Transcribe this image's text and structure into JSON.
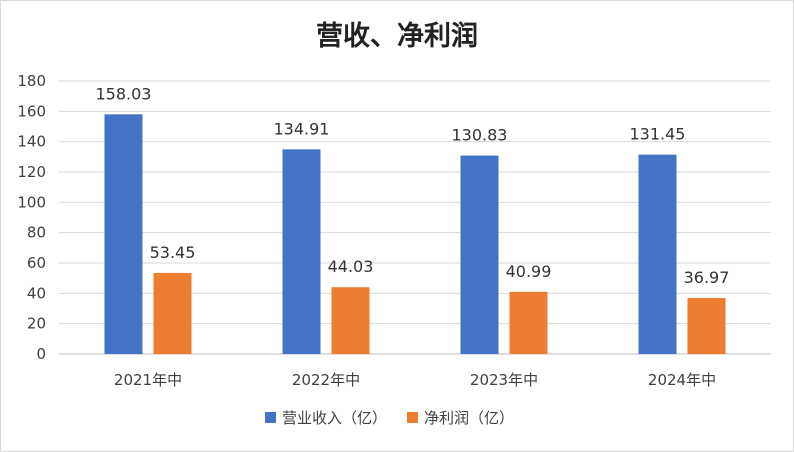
{
  "chart_data": {
    "type": "bar",
    "title": "营收、净利润",
    "categories": [
      "2021年中",
      "2022年中",
      "2023年中",
      "2024年中"
    ],
    "series": [
      {
        "name": "营业收入（亿）",
        "color": "#4472c4",
        "values": [
          158.03,
          134.91,
          130.83,
          131.45
        ],
        "labels": [
          "158.03",
          "134.91",
          "130.83",
          "131.45"
        ]
      },
      {
        "name": "净利润（亿）",
        "color": "#ed7d31",
        "values": [
          53.45,
          44.03,
          40.99,
          36.97
        ],
        "labels": [
          "53.45",
          "44.03",
          "40.99",
          "36.97"
        ]
      }
    ],
    "ylim": [
      0,
      180
    ],
    "yticks": [
      0,
      20,
      40,
      60,
      80,
      100,
      120,
      140,
      160,
      180
    ],
    "grid": true,
    "legend": "bottom",
    "gridColor": "#d9d9d9",
    "axisColor": "#bfbfbf"
  }
}
